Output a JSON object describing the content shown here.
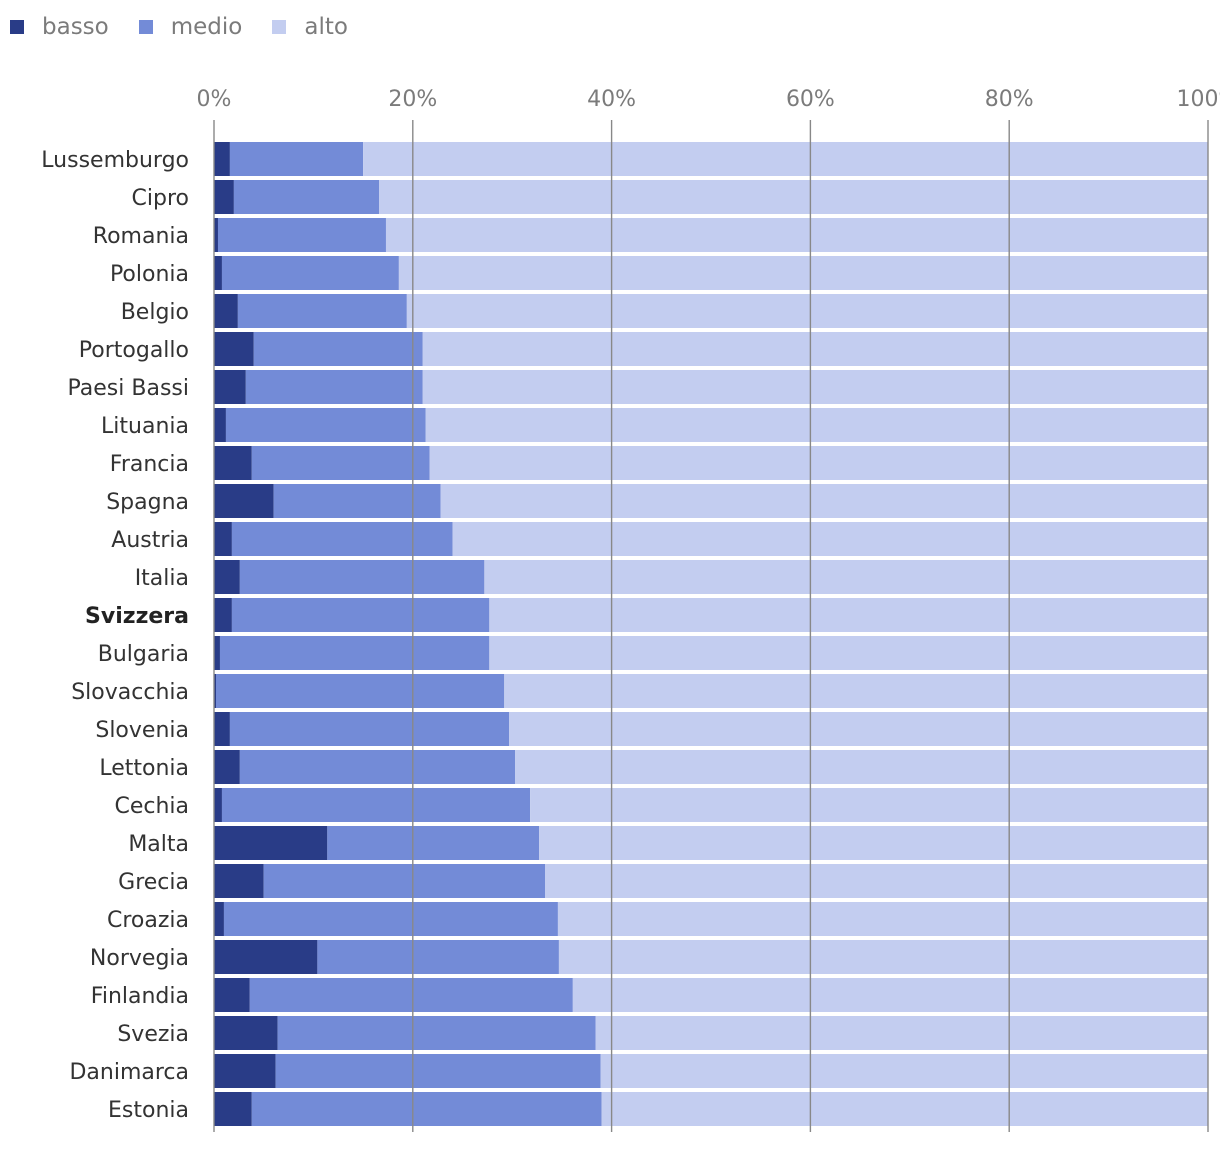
{
  "chart_data": {
    "type": "bar",
    "orientation": "horizontal",
    "stacked": true,
    "normalized": true,
    "xlim": [
      0,
      100
    ],
    "xticks": [
      "0%",
      "20%",
      "40%",
      "60%",
      "80%",
      "100%"
    ],
    "xtick_values": [
      0,
      20,
      40,
      60,
      80,
      100
    ],
    "grid": true,
    "legend_position": "top-left",
    "highlight_category": "Svizzera",
    "categories": [
      "Lussemburgo",
      "Cipro",
      "Romania",
      "Polonia",
      "Belgio",
      "Portogallo",
      "Paesi Bassi",
      "Lituania",
      "Francia",
      "Spagna",
      "Austria",
      "Italia",
      "Svizzera",
      "Bulgaria",
      "Slovacchia",
      "Slovenia",
      "Lettonia",
      "Cechia",
      "Malta",
      "Grecia",
      "Croazia",
      "Norvegia",
      "Finlandia",
      "Svezia",
      "Danimarca",
      "Estonia"
    ],
    "series": [
      {
        "name": "basso",
        "color": "#293c87",
        "values": [
          1.6,
          2.0,
          0.4,
          0.8,
          2.4,
          4.0,
          3.2,
          1.2,
          3.8,
          6.0,
          1.8,
          2.6,
          1.8,
          0.6,
          0.2,
          1.6,
          2.6,
          0.8,
          11.4,
          5.0,
          1.0,
          10.4,
          3.6,
          6.4,
          6.2,
          3.8
        ]
      },
      {
        "name": "medio",
        "color": "#738bd7",
        "values": [
          13.4,
          14.6,
          16.9,
          17.8,
          17.0,
          17.0,
          17.8,
          20.1,
          17.9,
          16.8,
          22.2,
          24.6,
          25.9,
          27.1,
          29.0,
          28.1,
          27.7,
          31.0,
          21.3,
          28.3,
          33.6,
          24.3,
          32.5,
          32.0,
          32.7,
          35.2
        ]
      },
      {
        "name": "alto",
        "color": "#c3cdf0",
        "values": [
          85.0,
          83.4,
          82.7,
          81.4,
          80.6,
          79.0,
          79.0,
          78.7,
          78.3,
          77.2,
          76.0,
          72.8,
          72.3,
          72.3,
          70.8,
          70.3,
          69.7,
          68.2,
          67.3,
          66.7,
          65.4,
          65.3,
          63.9,
          61.6,
          61.1,
          61.0
        ]
      }
    ]
  },
  "colors": {
    "basso": "#293c87",
    "medio": "#738bd7",
    "alto": "#c3cdf0",
    "grid": "#888888"
  }
}
